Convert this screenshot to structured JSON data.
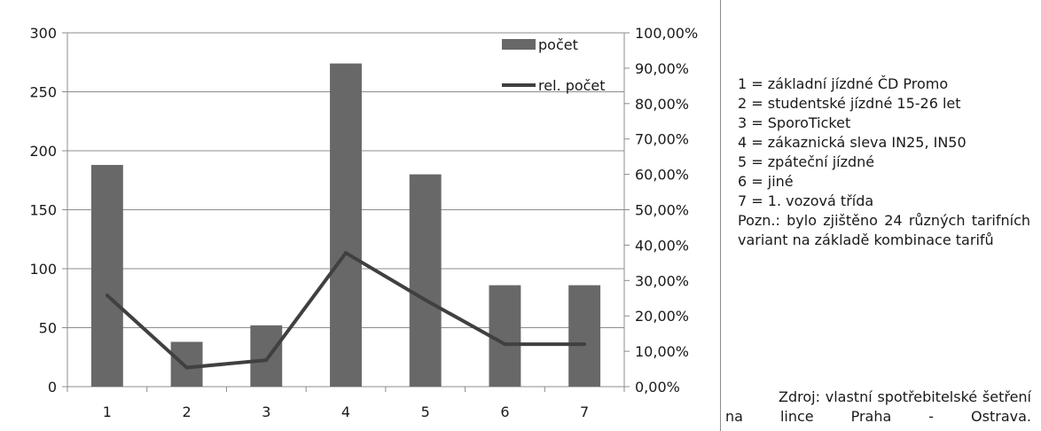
{
  "chart_data": {
    "type": "bar",
    "categories": [
      "1",
      "2",
      "3",
      "4",
      "5",
      "6",
      "7"
    ],
    "series": [
      {
        "name": "počet",
        "kind": "bar",
        "axis": "left",
        "color": "#686868",
        "values": [
          188,
          38,
          52,
          274,
          180,
          86,
          86
        ]
      },
      {
        "name": "rel. počet",
        "kind": "line",
        "axis": "right",
        "color": "#404040",
        "values": [
          0.258,
          0.054,
          0.075,
          0.378,
          0.245,
          0.12,
          0.12
        ]
      }
    ],
    "ylim": [
      0,
      300
    ],
    "y_ticks": [
      "0",
      "50",
      "100",
      "150",
      "200",
      "250",
      "300"
    ],
    "y_tick_values": [
      0,
      50,
      100,
      150,
      200,
      250,
      300
    ],
    "y2lim": [
      0,
      1
    ],
    "y2_ticks": [
      "0,00%",
      "10,00%",
      "20,00%",
      "30,00%",
      "40,00%",
      "50,00%",
      "60,00%",
      "70,00%",
      "80,00%",
      "90,00%",
      "100,00%"
    ],
    "y2_tick_values": [
      0,
      0.1,
      0.2,
      0.3,
      0.4,
      0.5,
      0.6,
      0.7,
      0.8,
      0.9,
      1.0
    ],
    "grid": true,
    "legend_position": "top-right"
  },
  "legend": {
    "bar_label": "počet",
    "line_label": "rel. počet"
  },
  "notes": {
    "lines": [
      "1 = základní jízdné ČD Promo",
      "2 = studentské jízdné 15-26 let",
      "3 = SporoTicket",
      "4 = zákaznická sleva IN25, IN50",
      "5 = zpáteční jízdné",
      "6 = jiné",
      "7 = 1. vozová třída"
    ],
    "remark": "Pozn.: bylo zjištěno 24 různých tarifních variant na základě kombinace tarifů"
  },
  "source": "Zdroj: vlastní spotřebitelské šetření na lince Praha - Ostrava."
}
